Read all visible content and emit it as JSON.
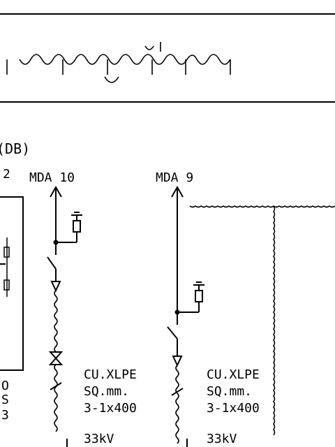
{
  "title_block": {
    "title_script": "ᦶᦶᦶᦶᦶᦶᦶᦶᦶᦶ",
    "title_text": "ᦶ"
  },
  "note_fragment": "(DB)",
  "feeders": [
    {
      "id": "mda10",
      "label": "MDA 10",
      "cable_size": "3-1x400",
      "cable_unit": "SQ.mm.",
      "cable_type": "CU.XLPE",
      "voltage": "33kV"
    },
    {
      "id": "mda9",
      "label": "MDA 9",
      "cable_size": "3-1x400",
      "cable_unit": "SQ.mm.",
      "cable_type": "CU.XLPE",
      "voltage": "33kV"
    }
  ],
  "left_fragment": {
    "top_char": "2",
    "bottom_chars": [
      "O",
      "S",
      "3"
    ]
  },
  "colors": {
    "line": "#000000",
    "background": "#ffffff"
  }
}
